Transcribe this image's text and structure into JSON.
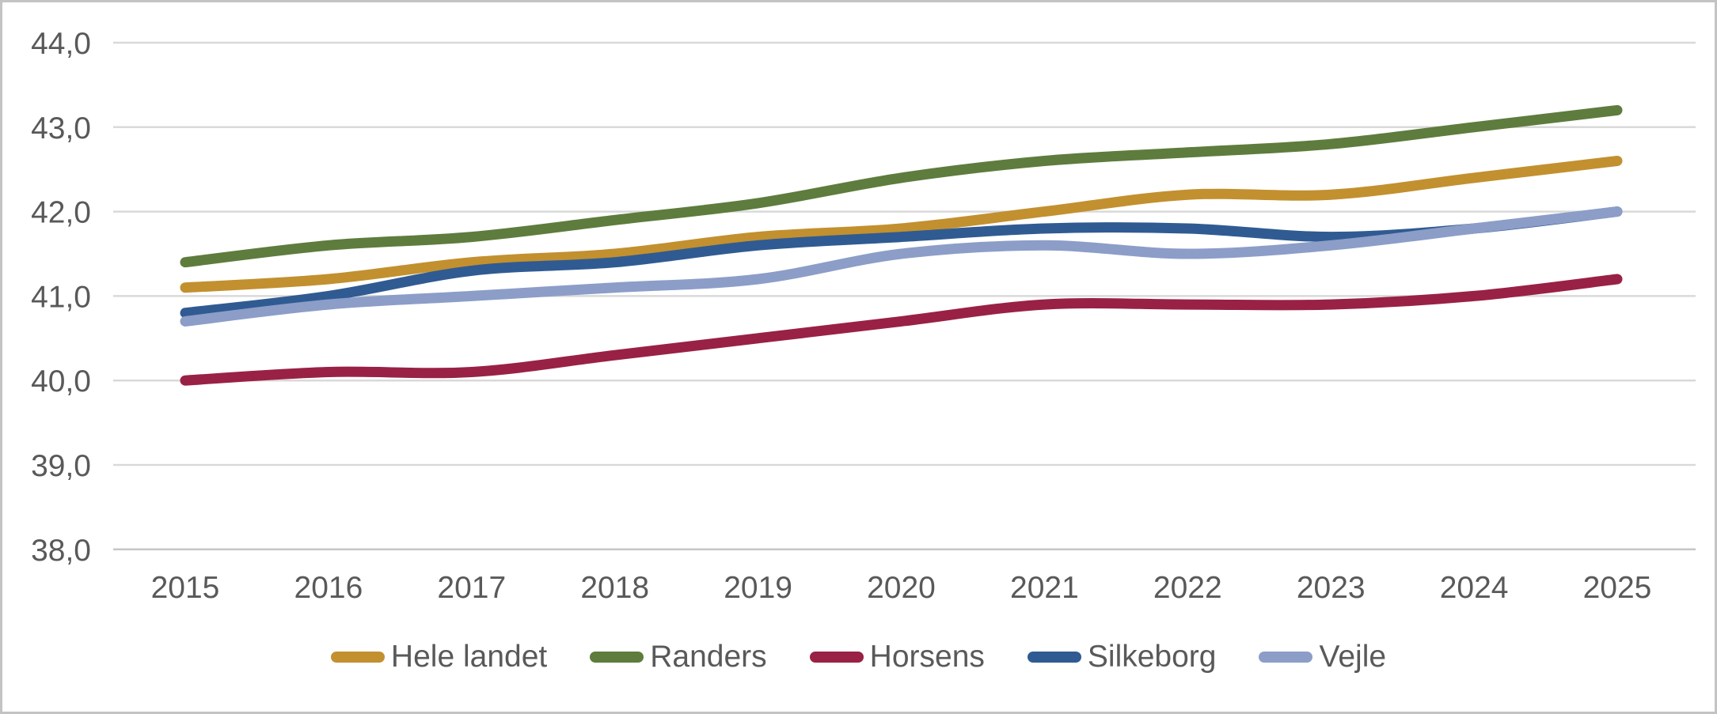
{
  "chart_data": {
    "type": "line",
    "title": "",
    "xlabel": "",
    "ylabel": "",
    "x": [
      2015,
      2016,
      2017,
      2018,
      2019,
      2020,
      2021,
      2022,
      2023,
      2024,
      2025
    ],
    "series": [
      {
        "name": "Hele landet",
        "color": "#C2902F",
        "values": [
          41.1,
          41.2,
          41.4,
          41.5,
          41.7,
          41.8,
          42.0,
          42.2,
          42.2,
          42.4,
          42.6
        ]
      },
      {
        "name": "Randers",
        "color": "#5E7C3D",
        "values": [
          41.4,
          41.6,
          41.7,
          41.9,
          42.1,
          42.4,
          42.6,
          42.7,
          42.8,
          43.0,
          43.2
        ]
      },
      {
        "name": "Horsens",
        "color": "#992145",
        "values": [
          40.0,
          40.1,
          40.1,
          40.3,
          40.5,
          40.7,
          40.9,
          40.9,
          40.9,
          41.0,
          41.2
        ]
      },
      {
        "name": "Silkeborg",
        "color": "#305B92",
        "values": [
          40.8,
          41.0,
          41.3,
          41.4,
          41.6,
          41.7,
          41.8,
          41.8,
          41.7,
          41.8,
          42.0
        ]
      },
      {
        "name": "Vejle",
        "color": "#8C9DC8",
        "values": [
          40.7,
          40.9,
          41.0,
          41.1,
          41.2,
          41.5,
          41.6,
          41.5,
          41.6,
          41.8,
          42.0
        ]
      }
    ],
    "ylim": [
      38.0,
      44.0
    ],
    "ytick_step": 1.0,
    "ytick_labels": [
      "44,0",
      "43,0",
      "42,0",
      "41,0",
      "40,0",
      "39,0",
      "38,0"
    ],
    "xtick_labels": [
      "2015",
      "2016",
      "2017",
      "2018",
      "2019",
      "2020",
      "2021",
      "2022",
      "2023",
      "2024",
      "2025"
    ],
    "grid": true,
    "line_smoothing": true,
    "legend_position": "bottom",
    "legend_order": [
      "Hele landet",
      "Randers",
      "Horsens",
      "Silkeborg",
      "Vejle"
    ]
  },
  "style": {
    "grid_color": "#D9D9D9",
    "axis_line_color": "#C6C6C6",
    "text_color": "#595959",
    "background": "#FFFFFF",
    "border_color": "#C3C3C3"
  }
}
